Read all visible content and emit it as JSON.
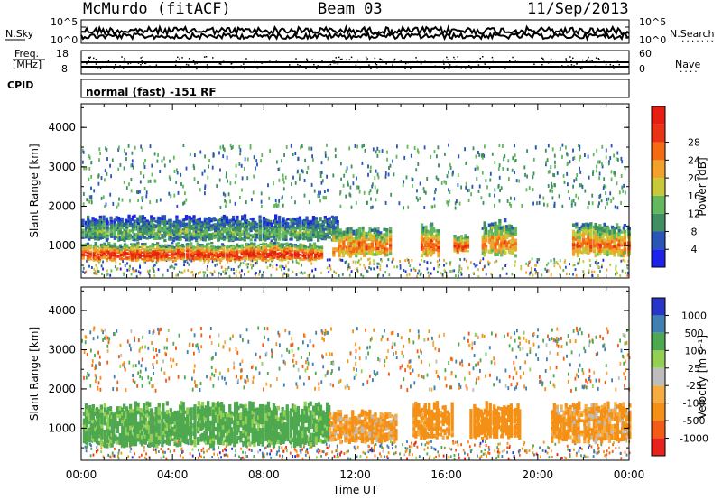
{
  "header": {
    "station": "McMurdo (fitACF)",
    "beam": "Beam 03",
    "date": "11/Sep/2013"
  },
  "noise_panel": {
    "left_label": "N.Sky",
    "right_label": "N.Search",
    "right_dots": ".......",
    "ticks_left": [
      "10^5",
      "10^0"
    ],
    "ticks_right": [
      "10^5",
      "10^0"
    ]
  },
  "freq_panel": {
    "left_label_1": "Freq.",
    "left_label_2": "[MHz]",
    "right_label": "Nave",
    "right_dots": "....",
    "ticks_left": [
      "18",
      "8"
    ],
    "ticks_right": [
      "60",
      "0"
    ]
  },
  "cpid_panel": {
    "label": "CPID",
    "text": "normal (fast) -151 RF"
  },
  "x_axis": {
    "title": "Time UT",
    "ticks": [
      "00:00",
      "04:00",
      "08:00",
      "12:00",
      "16:00",
      "20:00",
      "00:00"
    ]
  },
  "colors": {
    "power": [
      "#1e22e8",
      "#2a55b8",
      "#3f8f62",
      "#63b85e",
      "#c8c839",
      "#f2a22a",
      "#f46b14",
      "#e83415",
      "#e71d12"
    ],
    "velocity": [
      "#e8221c",
      "#f25c17",
      "#f59017",
      "#f5ac42",
      "#bdbdbd",
      "#93cf52",
      "#4ea84f",
      "#3f7fb1",
      "#2735c8"
    ],
    "ground_scatter": "#9a9a9a"
  },
  "chart_data": [
    {
      "type": "heatmap",
      "name": "power",
      "title": "",
      "xlabel": "Time UT",
      "ylabel": "Slant Range [km]",
      "x_range_hours": [
        0,
        24
      ],
      "ylim": [
        180,
        4600
      ],
      "yticks": [
        1000,
        2000,
        3000,
        4000
      ],
      "colorbar": {
        "label": "Power [dB]",
        "ticks": [
          "4",
          "8",
          "12",
          "16",
          "20",
          "24",
          "28"
        ],
        "range": [
          0,
          32
        ]
      },
      "features": [
        {
          "t_start": 0.0,
          "t_end": 10.5,
          "range_low": 600,
          "range_high": 1100,
          "level_db": 30
        },
        {
          "t_start": 0.0,
          "t_end": 11.2,
          "range_low": 1100,
          "range_high": 1800,
          "level_db": 12
        },
        {
          "t_start": 11.0,
          "t_end": 13.5,
          "range_low": 700,
          "range_high": 1500,
          "level_db": 24
        },
        {
          "t_start": 14.8,
          "t_end": 15.6,
          "range_low": 700,
          "range_high": 1600,
          "level_db": 26
        },
        {
          "t_start": 16.3,
          "t_end": 16.9,
          "range_low": 800,
          "range_high": 1300,
          "level_db": 28
        },
        {
          "t_start": 17.5,
          "t_end": 19.0,
          "range_low": 700,
          "range_high": 1700,
          "level_db": 22
        },
        {
          "t_start": 21.5,
          "t_end": 24.0,
          "range_low": 700,
          "range_high": 1600,
          "level_db": 24
        }
      ]
    },
    {
      "type": "heatmap",
      "name": "velocity",
      "title": "",
      "xlabel": "Time UT",
      "ylabel": "Slant Range [km]",
      "x_range_hours": [
        0,
        24
      ],
      "ylim": [
        180,
        4600
      ],
      "yticks": [
        1000,
        2000,
        3000,
        4000
      ],
      "colorbar": {
        "label": "Velocity [m s⁻¹]",
        "ticks": [
          "-1000",
          "-500",
          "-100",
          "-25",
          "25",
          "100",
          "500",
          "1000"
        ],
        "range": [
          -1200,
          1200
        ]
      },
      "features": [
        {
          "t_start": 0.0,
          "t_end": 10.8,
          "range_low": 500,
          "range_high": 1700,
          "velocity": 200
        },
        {
          "t_start": 10.8,
          "t_end": 13.8,
          "range_low": 600,
          "range_high": 1500,
          "velocity": -150
        },
        {
          "t_start": 14.5,
          "t_end": 16.2,
          "range_low": 700,
          "range_high": 1700,
          "velocity": -200
        },
        {
          "t_start": 17.0,
          "t_end": 19.2,
          "range_low": 700,
          "range_high": 1700,
          "velocity": -250
        },
        {
          "t_start": 20.5,
          "t_end": 24.0,
          "range_low": 600,
          "range_high": 1700,
          "velocity": -150
        }
      ]
    }
  ]
}
